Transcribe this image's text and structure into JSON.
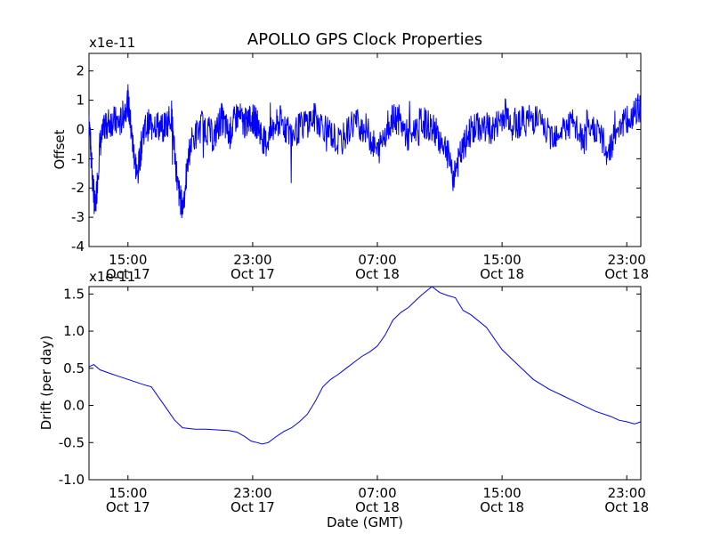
{
  "chart_data": [
    {
      "type": "line",
      "title": "APOLLO GPS Clock Properties",
      "xlabel": "",
      "ylabel": "Offset",
      "scale_label": "x1e-11",
      "ylim": [
        -4,
        2.6
      ],
      "yticks": [
        2,
        1,
        0,
        -1,
        -2,
        -3,
        -4
      ],
      "xlim_hours": [
        12.5,
        47.9
      ],
      "xticks": [
        {
          "hour": 15,
          "time": "15:00",
          "date": "Oct 17"
        },
        {
          "hour": 23,
          "time": "23:00",
          "date": "Oct 17"
        },
        {
          "hour": 31,
          "time": "07:00",
          "date": "Oct 18"
        },
        {
          "hour": 39,
          "time": "15:00",
          "date": "Oct 18"
        },
        {
          "hour": 47,
          "time": "23:00",
          "date": "Oct 18"
        }
      ],
      "color": "#0000ff",
      "series": [
        {
          "name": "Offset",
          "note": "approximate envelope trend of the noisy offset trace (x1e-11)",
          "x": [
            12.5,
            12.7,
            12.9,
            13.2,
            13.6,
            14.0,
            14.5,
            15.0,
            15.3,
            15.6,
            16.0,
            16.6,
            17.2,
            17.8,
            18.2,
            18.5,
            19.0,
            19.8,
            20.5,
            21.0,
            21.5,
            22.0,
            22.5,
            22.9,
            23.3,
            23.8,
            24.3,
            24.8,
            25.5,
            26.3,
            27.0,
            27.8,
            28.6,
            29.5,
            30.3,
            31.0,
            31.7,
            32.3,
            33.0,
            33.8,
            34.6,
            35.3,
            35.9,
            36.4,
            37.0,
            37.8,
            38.5,
            39.2,
            39.8,
            40.5,
            41.2,
            42.0,
            42.8,
            43.5,
            44.2,
            45.0,
            45.8,
            46.5,
            47.2,
            47.9
          ],
          "values": [
            0.5,
            -1.5,
            -2.8,
            -0.5,
            0.2,
            0.3,
            0.2,
            1.0,
            -0.5,
            -1.6,
            0.0,
            0.3,
            0.0,
            0.5,
            -2.0,
            -2.7,
            -0.5,
            0.2,
            -0.3,
            0.4,
            -0.2,
            0.5,
            0.2,
            0.4,
            0.2,
            -0.5,
            0.0,
            0.3,
            -0.2,
            0.2,
            0.4,
            0.0,
            -0.5,
            0.3,
            0.0,
            -0.8,
            0.2,
            0.4,
            -0.3,
            0.3,
            0.0,
            -0.5,
            -1.5,
            -0.8,
            0.0,
            0.1,
            0.0,
            0.6,
            0.2,
            0.3,
            0.4,
            -0.2,
            0.0,
            0.2,
            -0.4,
            0.1,
            -0.8,
            0.2,
            0.3,
            0.8
          ]
        }
      ]
    },
    {
      "type": "line",
      "title": "",
      "xlabel": "Date (GMT)",
      "ylabel": "Drift (per day)",
      "scale_label": "x1e-11",
      "ylim": [
        -1.0,
        1.6
      ],
      "yticks": [
        1.5,
        1.0,
        0.5,
        0.0,
        -0.5,
        -1.0
      ],
      "ytick_labels": [
        "1.5",
        "1.0",
        "0.5",
        "0.0",
        "-0.5",
        "-1.0"
      ],
      "xlim_hours": [
        12.5,
        47.9
      ],
      "xticks": [
        {
          "hour": 15,
          "time": "15:00",
          "date": "Oct 17"
        },
        {
          "hour": 23,
          "time": "23:00",
          "date": "Oct 17"
        },
        {
          "hour": 31,
          "time": "07:00",
          "date": "Oct 18"
        },
        {
          "hour": 39,
          "time": "15:00",
          "date": "Oct 18"
        },
        {
          "hour": 47,
          "time": "23:00",
          "date": "Oct 18"
        }
      ],
      "color": "#0000ff",
      "series": [
        {
          "name": "Drift",
          "x": [
            12.5,
            12.8,
            13.2,
            14.0,
            15.0,
            16.0,
            16.5,
            17.0,
            17.5,
            18.0,
            18.5,
            19.3,
            20.0,
            20.8,
            21.5,
            22.0,
            22.5,
            22.9,
            23.3,
            23.6,
            24.0,
            24.5,
            25.0,
            25.5,
            26.0,
            26.5,
            27.0,
            27.5,
            28.0,
            28.5,
            29.0,
            29.5,
            30.0,
            30.5,
            31.0,
            31.5,
            32.0,
            32.5,
            33.0,
            33.5,
            33.8,
            34.2,
            34.5,
            35.0,
            35.5,
            36.0,
            36.5,
            37.0,
            38.0,
            39.0,
            40.0,
            41.0,
            42.0,
            43.0,
            44.0,
            45.0,
            46.0,
            46.5,
            47.0,
            47.5,
            47.9
          ],
          "values": [
            0.52,
            0.55,
            0.48,
            0.42,
            0.35,
            0.28,
            0.25,
            0.1,
            -0.05,
            -0.2,
            -0.3,
            -0.32,
            -0.32,
            -0.33,
            -0.34,
            -0.36,
            -0.42,
            -0.48,
            -0.5,
            -0.52,
            -0.5,
            -0.42,
            -0.35,
            -0.3,
            -0.22,
            -0.12,
            0.05,
            0.25,
            0.35,
            0.42,
            0.5,
            0.58,
            0.66,
            0.72,
            0.8,
            0.95,
            1.15,
            1.25,
            1.32,
            1.42,
            1.48,
            1.55,
            1.6,
            1.52,
            1.48,
            1.45,
            1.28,
            1.22,
            1.05,
            0.75,
            0.55,
            0.35,
            0.22,
            0.12,
            0.02,
            -0.08,
            -0.15,
            -0.2,
            -0.22,
            -0.25,
            -0.22
          ]
        }
      ]
    }
  ]
}
